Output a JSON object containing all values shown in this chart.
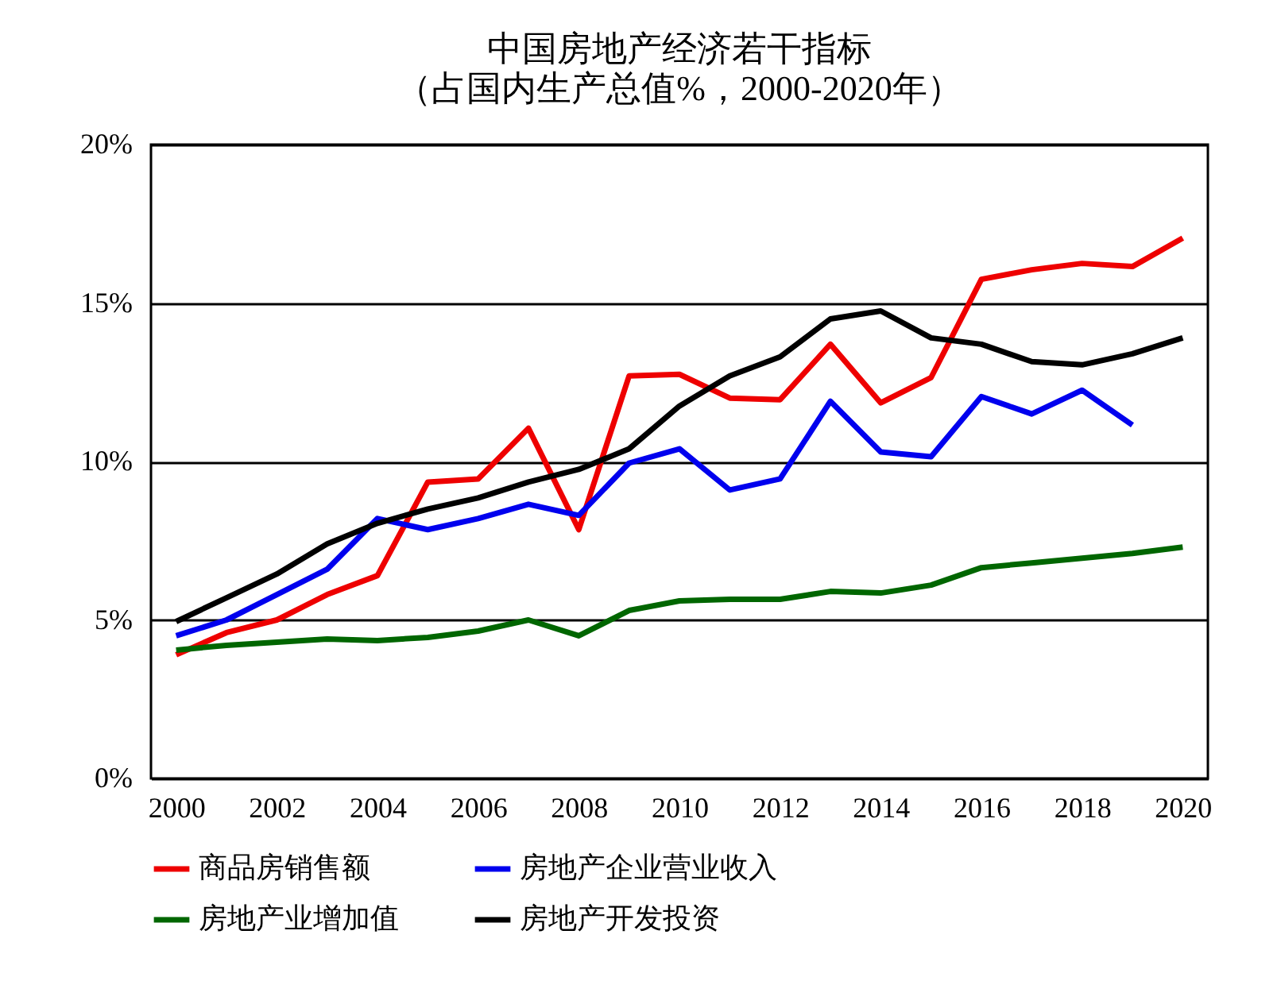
{
  "chart_data": {
    "type": "line",
    "title": "中国房地产经济若干指标",
    "subtitle": "（占国内生产总值%，2000-2020年）",
    "x": [
      2000,
      2001,
      2002,
      2003,
      2004,
      2005,
      2006,
      2007,
      2008,
      2009,
      2010,
      2011,
      2012,
      2013,
      2014,
      2015,
      2016,
      2017,
      2018,
      2019,
      2020
    ],
    "xlim": [
      1999.5,
      2020.5
    ],
    "xticks": [
      2000,
      2002,
      2004,
      2006,
      2008,
      2010,
      2012,
      2014,
      2016,
      2018,
      2020
    ],
    "ylim": [
      0,
      20
    ],
    "yticks": [
      {
        "value": 0,
        "label": "0%"
      },
      {
        "value": 5,
        "label": "5%"
      },
      {
        "value": 10,
        "label": "10%"
      },
      {
        "value": 15,
        "label": "15%"
      },
      {
        "value": 20,
        "label": "20%"
      }
    ],
    "grid": "y",
    "legend": "bottom",
    "marker": "none",
    "line_style": "solid",
    "series": [
      {
        "name": "商品房销售额",
        "color": "#ee0000",
        "values": [
          3.9,
          4.6,
          5.0,
          5.8,
          6.4,
          9.35,
          9.45,
          11.05,
          7.85,
          12.7,
          12.75,
          12.0,
          11.95,
          13.7,
          11.85,
          12.65,
          15.75,
          16.05,
          16.25,
          16.15,
          17.05
        ]
      },
      {
        "name": "房地产企业营业收入",
        "color": "#0000ee",
        "values": [
          4.5,
          5.0,
          5.8,
          6.6,
          8.2,
          7.85,
          8.2,
          8.65,
          8.3,
          9.95,
          10.4,
          9.1,
          9.45,
          11.9,
          10.3,
          10.15,
          12.05,
          11.5,
          12.25,
          11.15,
          null
        ]
      },
      {
        "name": "房地产业增加值",
        "color": "#006600",
        "values": [
          4.05,
          4.2,
          4.3,
          4.4,
          4.35,
          4.45,
          4.65,
          5.0,
          4.5,
          5.3,
          5.6,
          5.65,
          5.65,
          5.9,
          5.85,
          6.1,
          6.65,
          6.8,
          6.95,
          7.1,
          7.3
        ]
      },
      {
        "name": "房地产开发投资",
        "color": "#000000",
        "values": [
          4.95,
          5.7,
          6.45,
          7.4,
          8.05,
          8.5,
          8.85,
          9.35,
          9.75,
          10.4,
          11.75,
          12.7,
          13.3,
          14.5,
          14.75,
          13.9,
          13.7,
          13.15,
          13.05,
          13.4,
          13.9
        ]
      }
    ]
  }
}
